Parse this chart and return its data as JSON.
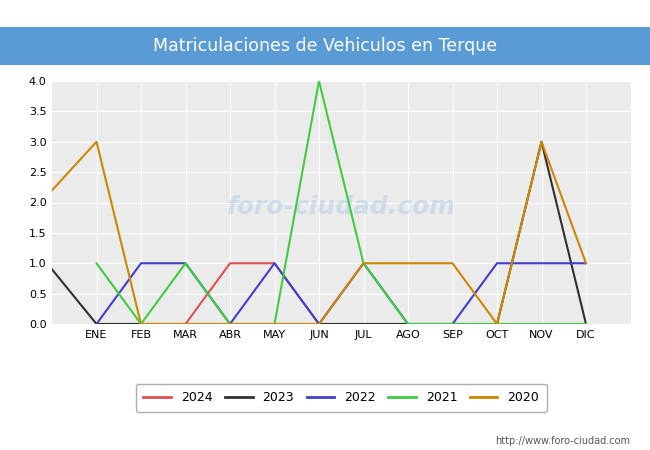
{
  "title": "Matriculaciones de Vehiculos en Terque",
  "title_bg_color": "#5b9bd5",
  "title_text_color": "#ffffff",
  "months": [
    "ENE",
    "FEB",
    "MAR",
    "ABR",
    "MAY",
    "JUN",
    "JUL",
    "AGO",
    "SEP",
    "OCT",
    "NOV",
    "DIC"
  ],
  "ylim": [
    0,
    4.0
  ],
  "yticks": [
    0.0,
    0.5,
    1.0,
    1.5,
    2.0,
    2.5,
    3.0,
    3.5,
    4.0
  ],
  "series": {
    "2024": {
      "color": "#e05050",
      "data": [
        0,
        0,
        0,
        1,
        1,
        0,
        0,
        0,
        0,
        0,
        0,
        0
      ]
    },
    "2023": {
      "color": "#303030",
      "data": [
        0,
        0,
        0,
        0,
        0,
        0,
        0,
        0,
        0,
        0,
        3,
        0
      ]
    },
    "2022": {
      "color": "#4040cc",
      "data": [
        0,
        1,
        1,
        0,
        1,
        0,
        1,
        0,
        0,
        1,
        1,
        1
      ]
    },
    "2021": {
      "color": "#40cc40",
      "data": [
        1,
        0,
        1,
        0,
        0,
        4,
        1,
        0,
        0,
        0,
        0,
        0
      ]
    },
    "2020": {
      "color": "#cc8800",
      "data": [
        3,
        0,
        0,
        0,
        0,
        0,
        1,
        1,
        1,
        0,
        3,
        1
      ]
    }
  },
  "legend_order": [
    "2024",
    "2023",
    "2022",
    "2021",
    "2020"
  ],
  "url": "http://www.foro-ciudad.com",
  "plot_bg_color": "#ebebeb",
  "grid_color": "#ffffff",
  "fig_bg_color": "#ffffff",
  "watermark_color": "#b0cce8",
  "watermark_alpha": 0.5
}
